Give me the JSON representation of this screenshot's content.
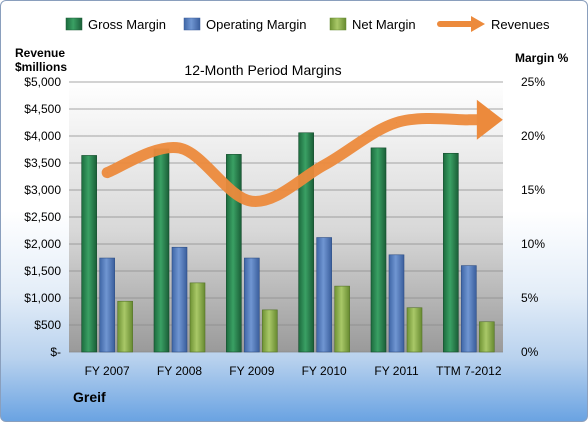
{
  "chart_data": {
    "type": "bar",
    "title": "12-Month Period Margins",
    "left_axis_label": [
      "Revenue",
      "$millions"
    ],
    "right_axis_label": "Margin %",
    "company": "Greif",
    "categories": [
      "FY 2007",
      "FY 2008",
      "FY 2009",
      "FY 2010",
      "FY 2011",
      "TTM 7-2012"
    ],
    "left_ticks": [
      "$-",
      "$500",
      "$1,000",
      "$1,500",
      "$2,000",
      "$2,500",
      "$3,000",
      "$3,500",
      "$4,000",
      "$4,500",
      "$5,000"
    ],
    "right_ticks": [
      "0%",
      "5%",
      "10%",
      "15%",
      "20%",
      "25%"
    ],
    "ylim_left": [
      0,
      5000
    ],
    "ylim_right": [
      0,
      25
    ],
    "series": [
      {
        "name": "Gross Margin",
        "values": [
          18.2,
          18.8,
          18.3,
          20.3,
          18.9,
          18.4
        ],
        "color": "#2e8b57"
      },
      {
        "name": "Operating Margin",
        "values": [
          8.7,
          9.7,
          8.7,
          10.6,
          9.0,
          8.0
        ],
        "color": "#5b84c4"
      },
      {
        "name": "Net Margin",
        "values": [
          4.7,
          6.4,
          3.9,
          6.1,
          4.1,
          2.8
        ],
        "color": "#8fb34a"
      }
    ],
    "revenues": {
      "name": "Revenues",
      "values": [
        3322,
        3777,
        2792,
        3462,
        4248,
        4300
      ],
      "color": "#ec8a3c"
    },
    "grid": true,
    "legend_position": "top"
  }
}
